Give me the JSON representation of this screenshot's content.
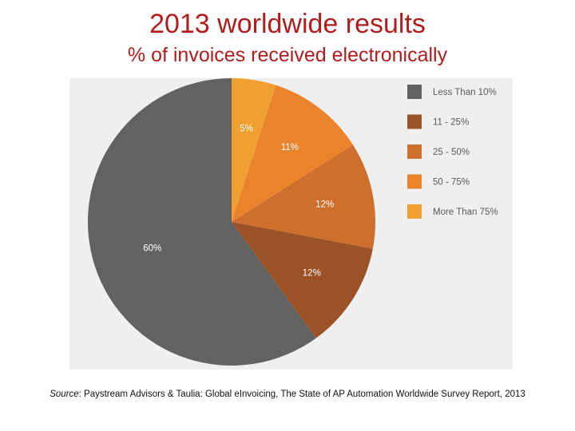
{
  "title": "2013 worldwide results",
  "subtitle": "% of invoices received electronically",
  "chart_data": {
    "type": "pie",
    "slices": [
      {
        "label": "More Than 75%",
        "value": 5,
        "display": "5%",
        "color": "#f0a030"
      },
      {
        "label": "50 - 75%",
        "value": 11,
        "display": "11%",
        "color": "#eb822c"
      },
      {
        "label": "25 - 50%",
        "value": 12,
        "display": "12%",
        "color": "#ce6f2e"
      },
      {
        "label": "11 - 25%",
        "value": 12,
        "display": "12%",
        "color": "#9a5226"
      },
      {
        "label": "Less Than 10%",
        "value": 60,
        "display": "60%",
        "color": "#646260"
      }
    ],
    "legend": [
      {
        "label": "Less Than 10%",
        "color": "#646260"
      },
      {
        "label": "11 - 25%",
        "color": "#9a5226"
      },
      {
        "label": "25 - 50%",
        "color": "#ce6f2e"
      },
      {
        "label": "50 - 75%",
        "color": "#eb822c"
      },
      {
        "label": "More Than 75%",
        "color": "#f0a030"
      }
    ],
    "legend_placement": "right"
  },
  "source": {
    "label": "Source",
    "text": ": Paystream Advisors & Taulia: Global eInvoicing, The State of AP Automation Worldwide Survey Report, 2013"
  }
}
